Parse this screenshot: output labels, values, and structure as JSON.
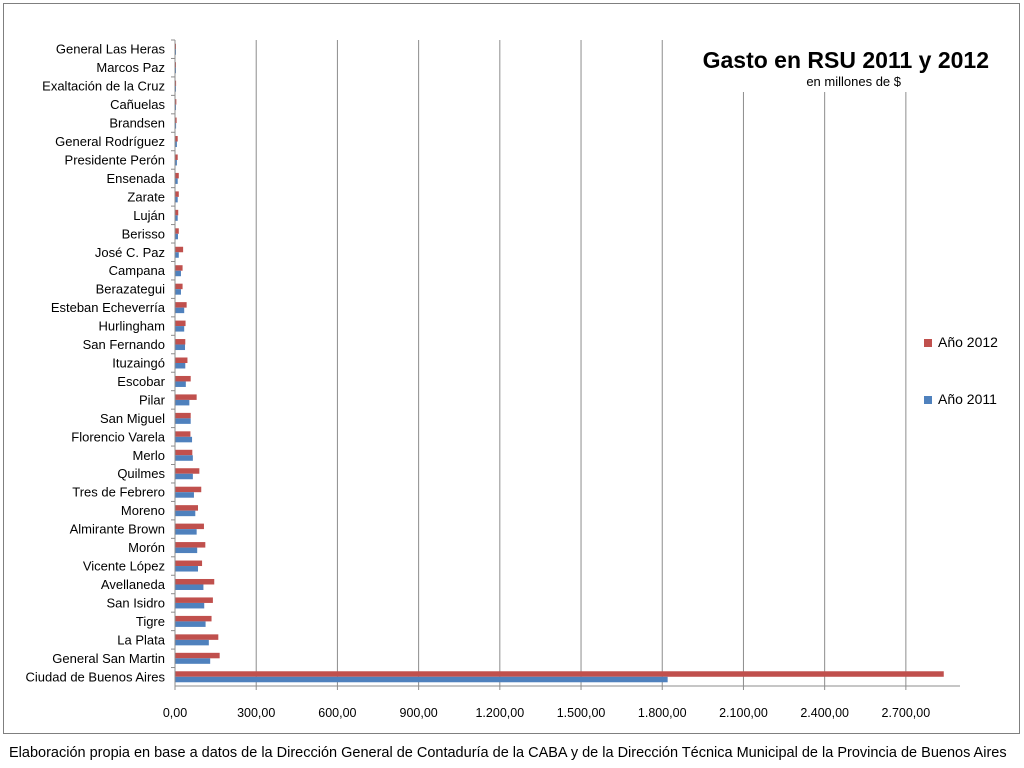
{
  "chart_data": {
    "type": "bar",
    "orientation": "horizontal",
    "title": "Gasto en RSU 2011 y 2012",
    "subtitle": "en millones de $",
    "xlim": [
      0,
      2900
    ],
    "x_ticks": [
      "0,00",
      "300,00",
      "600,00",
      "900,00",
      "1.200,00",
      "1.500,00",
      "1.800,00",
      "2.100,00",
      "2.400,00",
      "2.700,00"
    ],
    "x_tick_values": [
      0,
      300,
      600,
      900,
      1200,
      1500,
      1800,
      2100,
      2400,
      2700
    ],
    "grid": "vertical major gridlines",
    "legend_position": "right",
    "categories": [
      "General Las Heras",
      "Marcos Paz",
      "Exaltación de la Cruz",
      "Cañuelas",
      "Brandsen",
      "General Rodríguez",
      "Presidente Perón",
      "Ensenada",
      "Zarate",
      "Luján",
      "Berisso",
      "José C. Paz",
      "Campana",
      "Berazategui",
      "Esteban Echeverría",
      "Hurlingham",
      "San Fernando",
      "Ituzaingó",
      "Escobar",
      "Pilar",
      "San Miguel",
      "Florencio Varela",
      "Merlo",
      "Quilmes",
      "Tres de Febrero",
      "Moreno",
      "Almirante Brown",
      "Morón",
      "Vicente López",
      "Avellaneda",
      "San Isidro",
      "Tigre",
      "La Plata",
      "General San Martin",
      "Ciudad de Buenos Aires"
    ],
    "series": [
      {
        "name": "Año 2012",
        "color": "#c0504d",
        "values": [
          3,
          3,
          4,
          5,
          6,
          10,
          10,
          14,
          14,
          12,
          14,
          30,
          28,
          28,
          43,
          39,
          38,
          46,
          58,
          80,
          58,
          57,
          64,
          90,
          97,
          85,
          107,
          112,
          100,
          145,
          140,
          135,
          160,
          165,
          2840
        ]
      },
      {
        "name": "Año 2011",
        "color": "#4f81bd",
        "values": [
          2,
          2,
          3,
          3,
          4,
          7,
          7,
          10,
          10,
          10,
          11,
          14,
          22,
          22,
          34,
          34,
          37,
          38,
          40,
          53,
          58,
          63,
          66,
          66,
          70,
          75,
          80,
          82,
          85,
          105,
          108,
          113,
          125,
          130,
          1820
        ]
      }
    ]
  },
  "source_note": "Elaboración propia en base a datos de la Dirección General de Contaduría de la CABA y de la Dirección Técnica Municipal de la Provincia de Buenos Aires"
}
